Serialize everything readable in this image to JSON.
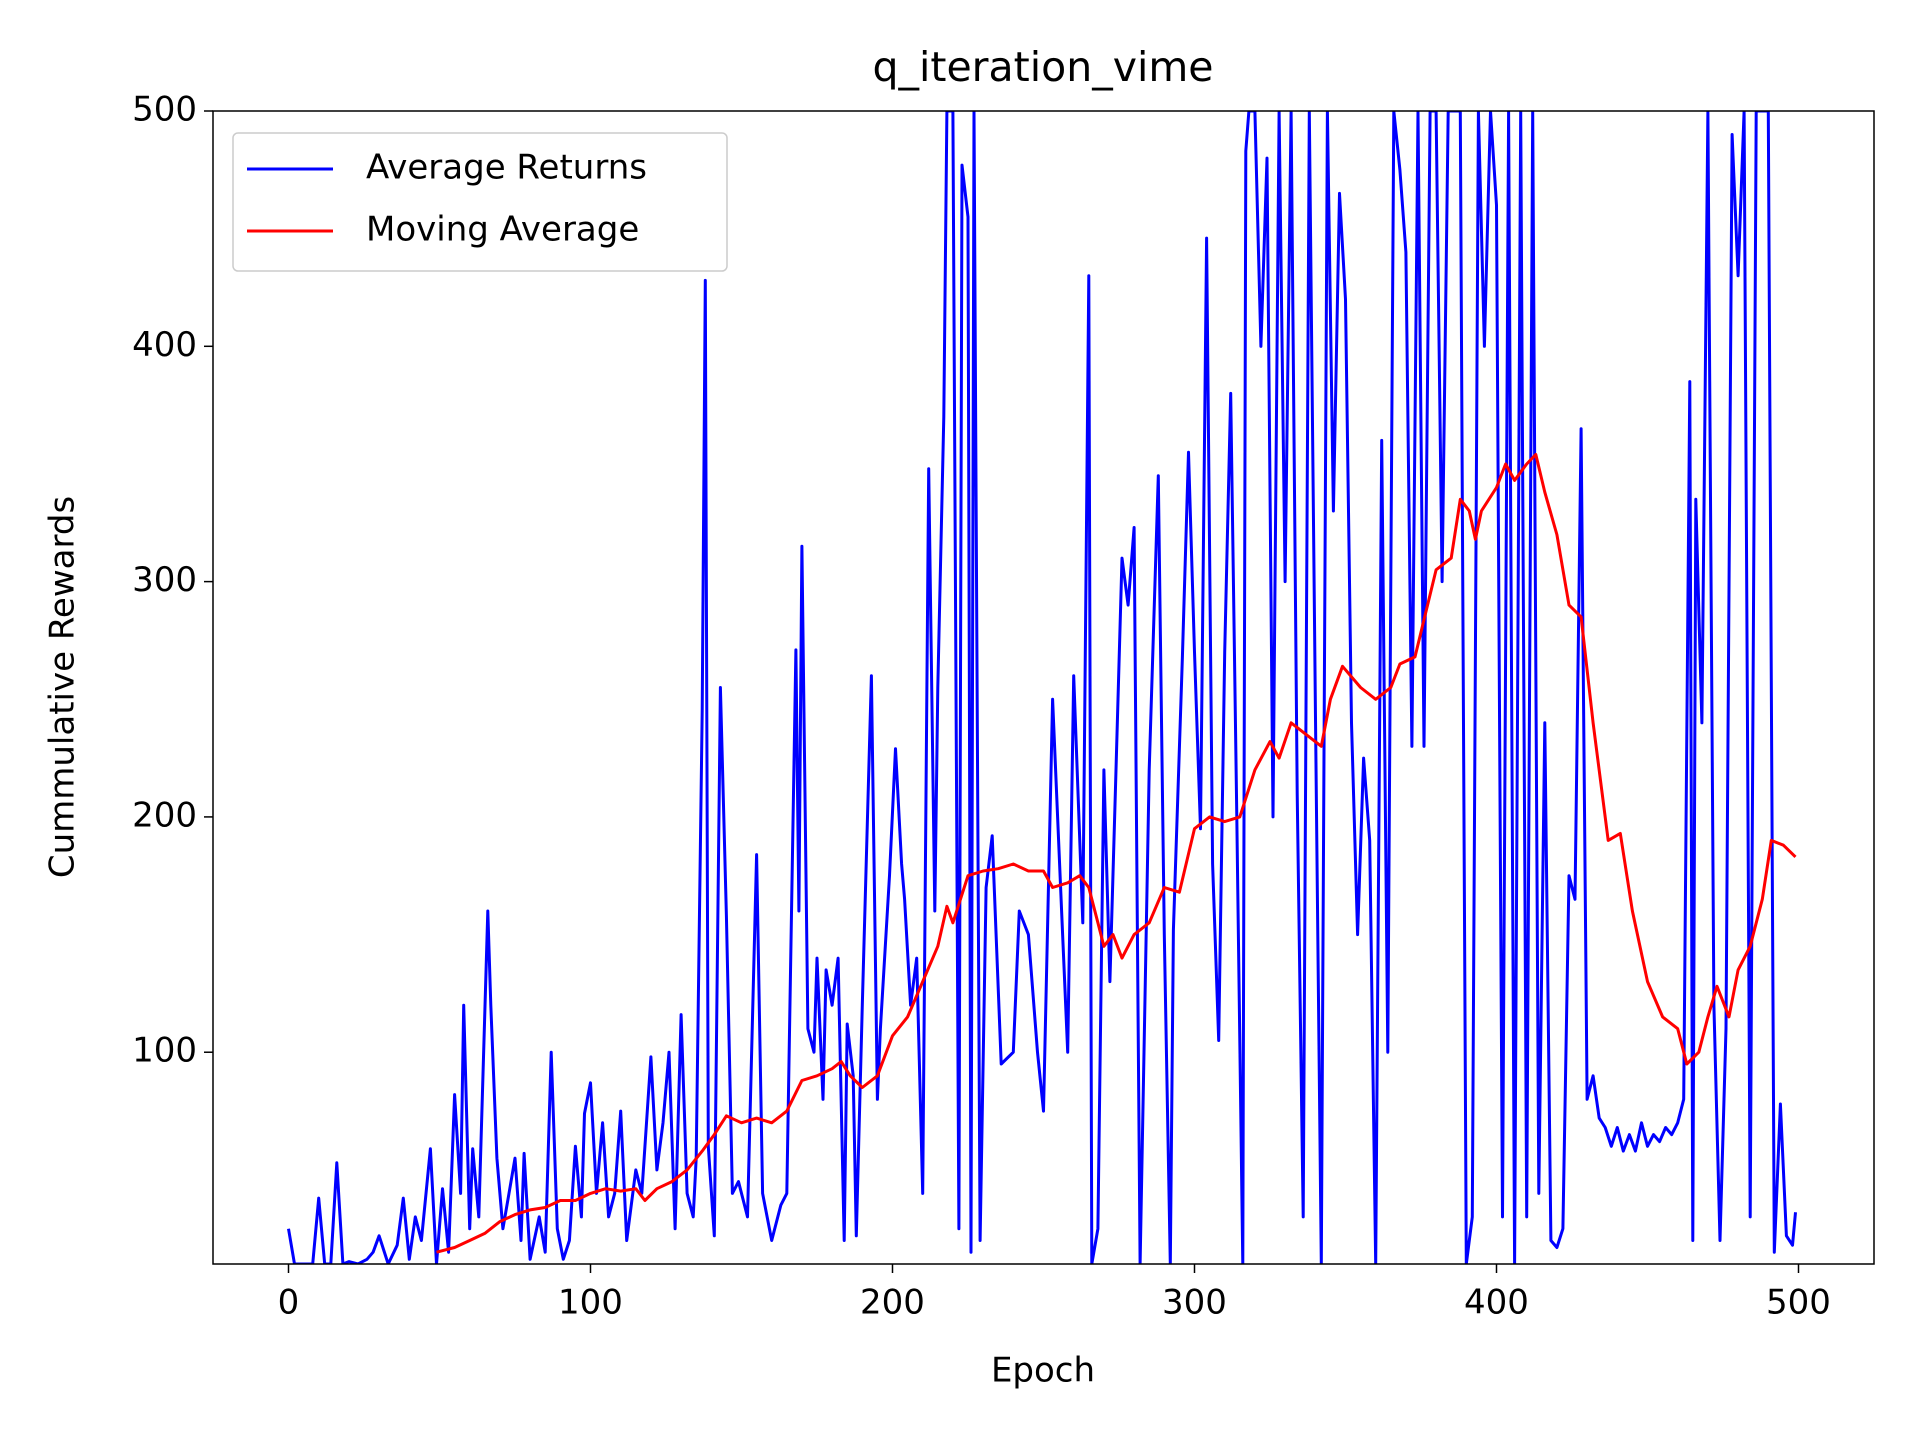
{
  "chart_data": {
    "type": "line",
    "title": "q_iteration_vime",
    "xlabel": "Epoch",
    "ylabel": "Cummulative Rewards",
    "xlim": [
      -25,
      525
    ],
    "ylim": [
      10,
      500
    ],
    "xticks": [
      0,
      100,
      200,
      300,
      400,
      500
    ],
    "yticks": [
      100,
      200,
      300,
      400,
      500
    ],
    "legend": "upper left",
    "series": [
      {
        "name": "Average Returns",
        "color": "#0000ff",
        "x": [
          0,
          2,
          5,
          8,
          10,
          12,
          14,
          16,
          18,
          20,
          23,
          26,
          28,
          30,
          33,
          36,
          38,
          40,
          42,
          44,
          47,
          49,
          51,
          53,
          55,
          57,
          58,
          60,
          61,
          63,
          66,
          67,
          69,
          71,
          73,
          75,
          77,
          78,
          80,
          83,
          85,
          87,
          89,
          91,
          93,
          95,
          97,
          98,
          100,
          102,
          104,
          106,
          108,
          110,
          112,
          115,
          117,
          120,
          122,
          124,
          126,
          128,
          130,
          132,
          134,
          135,
          137,
          138,
          139,
          141,
          143,
          145,
          147,
          149,
          152,
          155,
          157,
          160,
          163,
          165,
          168,
          169,
          170,
          172,
          174,
          175,
          177,
          178,
          180,
          182,
          184,
          185,
          187,
          188,
          190,
          193,
          195,
          196,
          199,
          201,
          203,
          204,
          206,
          208,
          210,
          212,
          214,
          215,
          217,
          218,
          220,
          222,
          223,
          225,
          226,
          227,
          229,
          231,
          233,
          236,
          240,
          242,
          245,
          248,
          250,
          253,
          256,
          258,
          260,
          263,
          265,
          266,
          268,
          270,
          272,
          274,
          276,
          278,
          280,
          282,
          285,
          288,
          290,
          292,
          293,
          296,
          298,
          300,
          302,
          304,
          306,
          308,
          310,
          312,
          314,
          316,
          317,
          318,
          320,
          322,
          324,
          326,
          328,
          330,
          332,
          334,
          336,
          338,
          340,
          342,
          344,
          346,
          348,
          350,
          352,
          354,
          356,
          358,
          360,
          362,
          364,
          366,
          368,
          370,
          372,
          374,
          376,
          378,
          380,
          382,
          384,
          386,
          388,
          390,
          392,
          394,
          396,
          398,
          400,
          402,
          404,
          406,
          408,
          410,
          412,
          414,
          416,
          418,
          420,
          422,
          424,
          426,
          428,
          430,
          432,
          434,
          436,
          438,
          440,
          442,
          444,
          446,
          448,
          450,
          452,
          454,
          456,
          458,
          460,
          462,
          464,
          465,
          466,
          468,
          470,
          472,
          474,
          476,
          478,
          480,
          482,
          484,
          486,
          488,
          490,
          492,
          494,
          496,
          498,
          499
        ],
        "values": [
          25,
          10,
          10,
          10,
          38,
          10,
          10,
          53,
          10,
          11,
          10,
          12,
          15,
          22,
          10,
          18,
          38,
          12,
          30,
          20,
          59,
          10,
          42,
          15,
          82,
          40,
          120,
          25,
          59,
          30,
          160,
          120,
          55,
          25,
          40,
          55,
          20,
          57,
          12,
          30,
          15,
          100,
          25,
          12,
          20,
          60,
          30,
          74,
          87,
          40,
          70,
          30,
          40,
          75,
          20,
          50,
          40,
          98,
          50,
          70,
          100,
          25,
          116,
          40,
          30,
          55,
          245,
          428,
          60,
          22,
          255,
          158,
          40,
          45,
          30,
          184,
          40,
          20,
          35,
          40,
          271,
          160,
          315,
          110,
          100,
          140,
          80,
          135,
          120,
          140,
          20,
          112,
          90,
          22,
          120,
          260,
          80,
          110,
          175,
          229,
          180,
          165,
          120,
          140,
          40,
          348,
          160,
          255,
          370,
          500,
          500,
          25,
          477,
          455,
          15,
          500,
          20,
          170,
          192,
          95,
          100,
          160,
          150,
          100,
          75,
          250,
          160,
          100,
          260,
          155,
          430,
          10,
          25,
          220,
          130,
          220,
          310,
          290,
          323,
          10,
          220,
          345,
          150,
          10,
          152,
          268,
          355,
          270,
          195,
          446,
          180,
          105,
          270,
          380,
          200,
          10,
          483,
          500,
          500,
          400,
          480,
          200,
          500,
          300,
          500,
          210,
          30,
          500,
          250,
          10,
          500,
          330,
          465,
          420,
          240,
          150,
          225,
          190,
          10,
          360,
          100,
          500,
          475,
          440,
          230,
          500,
          230,
          500,
          500,
          300,
          500,
          500,
          500,
          10,
          30,
          500,
          400,
          500,
          460,
          30,
          500,
          10,
          500,
          30,
          500,
          40,
          240,
          20,
          17,
          25,
          175,
          165,
          365,
          80,
          90,
          72,
          68,
          60,
          68,
          58,
          65,
          58,
          70,
          60,
          65,
          62,
          68,
          65,
          70,
          80,
          385,
          20,
          335,
          240,
          500,
          120,
          20,
          110,
          490,
          430,
          500,
          30,
          500,
          500,
          500,
          15,
          78,
          22,
          18,
          32
        ]
      },
      {
        "name": "Moving Average",
        "color": "#ff0000",
        "x": [
          49,
          55,
          60,
          65,
          70,
          75,
          80,
          85,
          90,
          95,
          100,
          105,
          110,
          115,
          118,
          122,
          127,
          132,
          137,
          141,
          145,
          150,
          155,
          160,
          165,
          170,
          175,
          180,
          183,
          186,
          190,
          195,
          200,
          205,
          210,
          215,
          218,
          220,
          225,
          230,
          235,
          240,
          245,
          250,
          253,
          258,
          262,
          265,
          268,
          270,
          273,
          276,
          280,
          285,
          290,
          295,
          300,
          305,
          310,
          315,
          320,
          325,
          328,
          332,
          337,
          342,
          345,
          349,
          355,
          360,
          365,
          368,
          373,
          380,
          385,
          388,
          391,
          393,
          395,
          400,
          403,
          406,
          410,
          413,
          416,
          420,
          424,
          428,
          432,
          437,
          441,
          445,
          450,
          455,
          460,
          463,
          467,
          470,
          473,
          477,
          480,
          484,
          488,
          491,
          495,
          499
        ],
        "values": [
          15,
          17,
          20,
          23,
          28,
          31,
          33,
          34,
          37,
          37,
          40,
          42,
          41,
          42,
          37,
          42,
          45,
          50,
          58,
          65,
          73,
          70,
          72,
          70,
          75,
          88,
          90,
          93,
          96,
          90,
          85,
          90,
          107,
          115,
          130,
          145,
          162,
          155,
          175,
          177,
          178,
          180,
          177,
          177,
          170,
          172,
          175,
          170,
          155,
          145,
          150,
          140,
          150,
          155,
          170,
          168,
          195,
          200,
          198,
          200,
          220,
          232,
          225,
          240,
          235,
          230,
          250,
          264,
          255,
          250,
          255,
          265,
          268,
          305,
          310,
          335,
          330,
          318,
          330,
          340,
          350,
          343,
          350,
          354,
          338,
          320,
          290,
          285,
          240,
          190,
          193,
          160,
          130,
          115,
          110,
          95,
          100,
          115,
          128,
          115,
          135,
          145,
          165,
          190,
          188,
          183
        ]
      }
    ]
  }
}
